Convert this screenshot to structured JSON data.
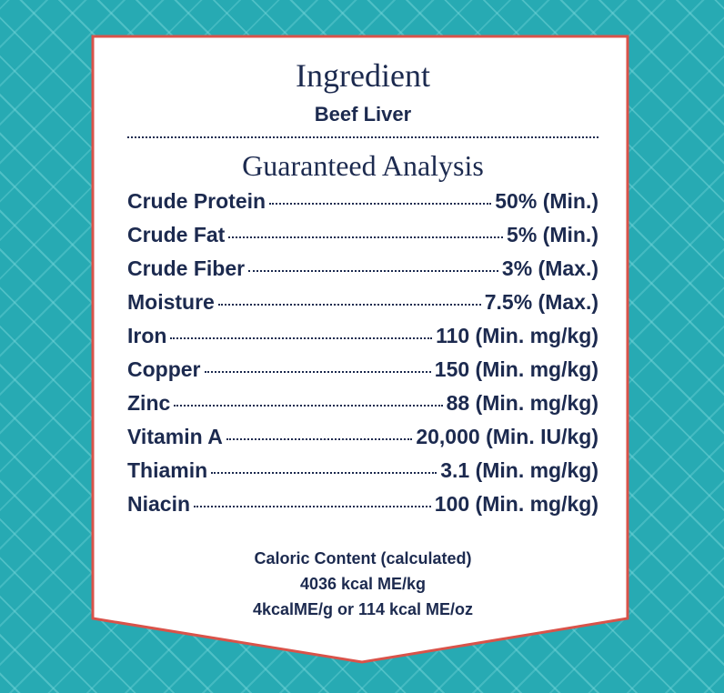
{
  "header": {
    "title": "Ingredient",
    "ingredient": "Beef Liver"
  },
  "analysis": {
    "title": "Guaranteed Analysis",
    "rows": [
      {
        "label": "Crude Protein",
        "value": "50% (Min.)"
      },
      {
        "label": "Crude Fat",
        "value": "5% (Min.)"
      },
      {
        "label": "Crude Fiber",
        "value": "3% (Max.)"
      },
      {
        "label": "Moisture",
        "value": "7.5% (Max.)"
      },
      {
        "label": "Iron",
        "value": "110 (Min. mg/kg)"
      },
      {
        "label": "Copper",
        "value": "150 (Min. mg/kg)"
      },
      {
        "label": "Zinc",
        "value": "88 (Min. mg/kg)"
      },
      {
        "label": "Vitamin A",
        "value": "20,000 (Min. IU/kg)"
      },
      {
        "label": "Thiamin",
        "value": "3.1 (Min. mg/kg)"
      },
      {
        "label": "Niacin",
        "value": "100 (Min. mg/kg)"
      }
    ]
  },
  "caloric": {
    "lines": [
      "Caloric Content (calculated)",
      "4036 kcal ME/kg",
      "4kcalME/g or 114 kcal ME/oz"
    ]
  }
}
